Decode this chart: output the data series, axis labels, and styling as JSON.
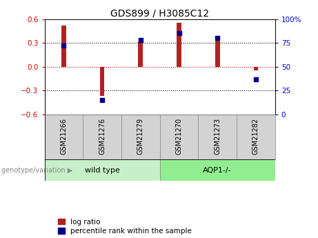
{
  "title": "GDS899 / H3085C12",
  "categories": [
    "GSM21266",
    "GSM21276",
    "GSM21279",
    "GSM21270",
    "GSM21273",
    "GSM21282"
  ],
  "log_ratios": [
    0.52,
    -0.37,
    0.32,
    0.55,
    0.35,
    -0.05
  ],
  "percentile_ranks": [
    72,
    15,
    78,
    85,
    80,
    37
  ],
  "bar_color": "#b22222",
  "dot_color": "#00008b",
  "ylim": [
    -0.6,
    0.6
  ],
  "yticks_left": [
    -0.6,
    -0.3,
    0,
    0.3,
    0.6
  ],
  "yticks_right": [
    0,
    25,
    50,
    75,
    100
  ],
  "ylabel_left_color": "#cc0000",
  "ylabel_right_color": "#0000cc",
  "hline_color": "#cc0000",
  "dotted_lines": [
    -0.3,
    0.3
  ],
  "dotted_line_color": "black",
  "wild_type_label": "wild type",
  "aqp1_label": "AQP1-/-",
  "group_bg_color_wt": "#c8f0c8",
  "group_bg_color_aqp": "#90ee90",
  "tick_bg_color": "#d3d3d3",
  "legend_red_label": "log ratio",
  "legend_blue_label": "percentile rank within the sample",
  "genotype_label": "genotype/variation",
  "bar_width": 0.12,
  "wt_count": 3,
  "aqp_count": 3
}
